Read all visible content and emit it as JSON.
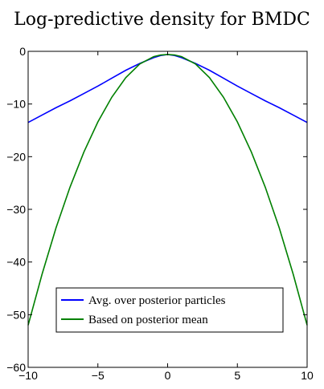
{
  "chart_data": {
    "type": "line",
    "title": "Log-predictive density for BMDC",
    "xlabel": "",
    "ylabel": "",
    "xlim": [
      -10,
      10
    ],
    "ylim": [
      -60,
      0
    ],
    "x_ticks": [
      -10,
      -5,
      0,
      5,
      10
    ],
    "y_ticks": [
      0,
      -10,
      -20,
      -30,
      -40,
      -50,
      -60
    ],
    "x_tick_labels": [
      "−10",
      "−5",
      "0",
      "5",
      "10"
    ],
    "y_tick_labels": [
      "0",
      "−10",
      "−20",
      "−30",
      "−40",
      "−50",
      "−60"
    ],
    "grid": false,
    "legend_position": "bottom-center",
    "series": [
      {
        "name": "Avg. over posterior particles",
        "color": "#0000ff",
        "x": [
          -10,
          -9,
          -8,
          -7,
          -6,
          -5,
          -4,
          -3,
          -2,
          -1,
          -0.5,
          0,
          0.5,
          1,
          2,
          3,
          4,
          5,
          6,
          7,
          8,
          9,
          10
        ],
        "y": [
          -13.5,
          -12.1,
          -10.7,
          -9.4,
          -8.0,
          -6.6,
          -5.1,
          -3.6,
          -2.3,
          -1.2,
          -0.8,
          -0.6,
          -0.8,
          -1.2,
          -2.3,
          -3.6,
          -5.1,
          -6.6,
          -8.0,
          -9.4,
          -10.7,
          -12.1,
          -13.5
        ]
      },
      {
        "name": "Based on posterior mean",
        "color": "#008000",
        "x": [
          -10,
          -9,
          -8,
          -7,
          -6,
          -5,
          -4,
          -3,
          -2,
          -1,
          -0.5,
          0,
          0.5,
          1,
          2,
          3,
          4,
          5,
          6,
          7,
          8,
          9,
          10
        ],
        "y": [
          -52.0,
          -42.3,
          -33.5,
          -25.8,
          -19.1,
          -13.4,
          -8.7,
          -5.0,
          -2.4,
          -1.0,
          -0.7,
          -0.6,
          -0.7,
          -1.0,
          -2.4,
          -5.0,
          -8.7,
          -13.4,
          -19.1,
          -25.8,
          -33.5,
          -42.3,
          -52.0
        ]
      }
    ]
  }
}
